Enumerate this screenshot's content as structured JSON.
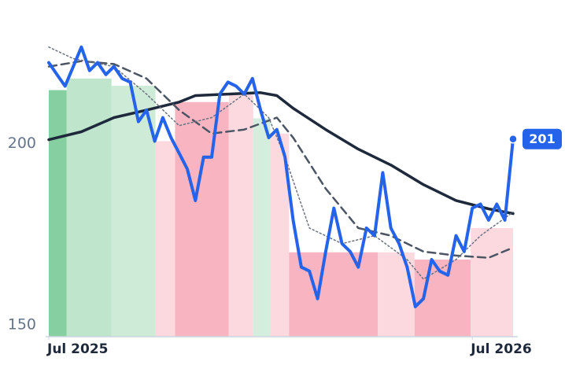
{
  "chart_data": {
    "type": "line",
    "xlim": [
      0,
      57
    ],
    "ylim": [
      146.7,
      231
    ],
    "xticks": [
      {
        "value": 0,
        "label": "Jul 2025"
      },
      {
        "value": 52,
        "label": "Jul 2026"
      }
    ],
    "yticks": [
      150,
      200
    ],
    "bands": [
      {
        "start": 0,
        "end": 2.2,
        "top": 214.8,
        "color": "#86cfa0"
      },
      {
        "start": 2.2,
        "end": 7.7,
        "top": 218,
        "color": "#bfe5cc"
      },
      {
        "start": 7.7,
        "end": 13.1,
        "top": 216,
        "color": "#cdebd7"
      },
      {
        "start": 13.1,
        "end": 15.5,
        "top": 200.7,
        "color": "#fcd9df"
      },
      {
        "start": 15.5,
        "end": 22.1,
        "top": 211.5,
        "color": "#f8b4c0"
      },
      {
        "start": 22.1,
        "end": 25.1,
        "top": 214,
        "color": "#fcd9df"
      },
      {
        "start": 25.1,
        "end": 27.2,
        "top": 207,
        "color": "#d4eedd"
      },
      {
        "start": 27.2,
        "end": 29.5,
        "top": 202.8,
        "color": "#fcd9df"
      },
      {
        "start": 29.5,
        "end": 40.4,
        "top": 170,
        "color": "#f8b4c0"
      },
      {
        "start": 40.4,
        "end": 44.9,
        "top": 170,
        "color": "#fcd9df"
      },
      {
        "start": 44.9,
        "end": 51.8,
        "top": 168,
        "color": "#f8b4c0"
      },
      {
        "start": 51.8,
        "end": 57,
        "top": 176.7,
        "color": "#fcd9df"
      }
    ],
    "series": [
      {
        "color": "#1e293b",
        "style": "solid",
        "width": 3.5,
        "x": [
          0,
          4,
          8,
          12,
          16,
          18,
          22,
          26,
          28,
          30,
          34,
          38,
          42,
          46,
          50,
          54,
          57
        ],
        "values": [
          201.1,
          203.3,
          207.2,
          209.3,
          211.5,
          213.3,
          213.7,
          214.1,
          213.3,
          209.8,
          203.9,
          198.5,
          194.1,
          188.7,
          184.3,
          182,
          180.7
        ]
      },
      {
        "color": "#4b5563",
        "style": "dashed",
        "width": 2.5,
        "x": [
          0,
          4,
          8,
          12,
          16,
          20,
          24,
          28,
          30,
          34,
          38,
          42,
          46,
          50,
          54,
          57
        ],
        "values": [
          221.3,
          222.8,
          222,
          218,
          209.3,
          202.8,
          203.9,
          207.2,
          201.7,
          187.6,
          176.7,
          174.6,
          170.2,
          169.1,
          168.5,
          171.3
        ]
      },
      {
        "color": "#6b7280",
        "style": "dotted",
        "width": 1.5,
        "x": [
          0,
          3,
          8,
          12,
          16,
          20,
          24,
          27,
          29,
          32,
          36,
          40,
          44,
          46,
          50,
          53,
          57
        ],
        "values": [
          226.7,
          223.5,
          221.3,
          213.7,
          205,
          207.2,
          213.7,
          207.2,
          196.3,
          176.7,
          172.4,
          174.6,
          168,
          162.6,
          168,
          174.6,
          181.1
        ]
      },
      {
        "color": "#2563eb",
        "style": "solid",
        "width": 4,
        "end_label": "201",
        "x": [
          0,
          1,
          2,
          3,
          4,
          5,
          6,
          7,
          8,
          9,
          10,
          11,
          12,
          13,
          14,
          15,
          16,
          17,
          18,
          19,
          20,
          21,
          22,
          23,
          24,
          25,
          26,
          27,
          28,
          29,
          30,
          31,
          32,
          33,
          34,
          35,
          36,
          37,
          38,
          39,
          40,
          41,
          42,
          43,
          44,
          45,
          46,
          47,
          48,
          49,
          50,
          51,
          52,
          53,
          54,
          55,
          56,
          57
        ],
        "values": [
          222.4,
          219.1,
          215.9,
          221.3,
          226.7,
          220.2,
          222.4,
          219.1,
          221.3,
          218,
          217,
          206.1,
          209.3,
          200.7,
          207.2,
          201.7,
          197.4,
          193,
          184.3,
          196.3,
          196.3,
          213.7,
          217,
          215.9,
          213.7,
          218,
          209.3,
          201.7,
          203.9,
          196.3,
          178.9,
          165.9,
          164.8,
          157.2,
          170.2,
          182.2,
          172.4,
          170.2,
          165.9,
          176.7,
          174.6,
          192,
          176.7,
          172.4,
          165.9,
          155,
          157.2,
          168,
          164.8,
          163.7,
          174.6,
          170.2,
          182.2,
          183.3,
          178.9,
          183.3,
          178.9,
          201.3
        ]
      }
    ]
  }
}
